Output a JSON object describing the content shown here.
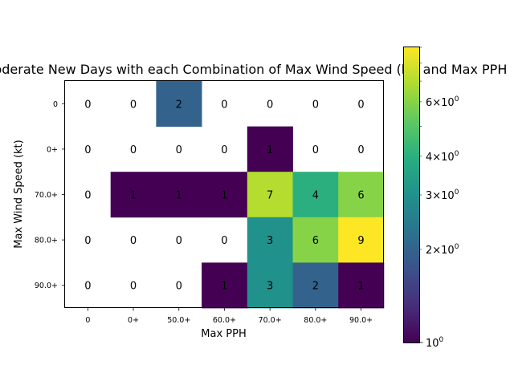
{
  "chart_data": {
    "type": "heatmap",
    "title": "Moderate New Days with each Combination of Max Wind Speed (kt) and Max PPH",
    "xlabel": "Max PPH",
    "ylabel": "Max Wind Speed (kt)",
    "x_categories": [
      "0",
      "0+",
      "50.0+",
      "60.0+",
      "70.0+",
      "80.0+",
      "90.0+"
    ],
    "y_categories": [
      "0",
      "0+",
      "70.0+",
      "80.0+",
      "90.0+"
    ],
    "values": [
      [
        0,
        0,
        2,
        0,
        0,
        0,
        0
      ],
      [
        0,
        0,
        0,
        0,
        1,
        0,
        0
      ],
      [
        0,
        1,
        1,
        1,
        7,
        4,
        6
      ],
      [
        0,
        0,
        0,
        0,
        3,
        6,
        9
      ],
      [
        0,
        0,
        0,
        1,
        3,
        2,
        1
      ]
    ],
    "colorbar": {
      "scale": "log",
      "colormap": "viridis",
      "min": 1,
      "max": 9,
      "major_tick_labels": [
        {
          "value": 1,
          "base": "10",
          "exp": "0"
        }
      ],
      "minor_tick_labels": [
        {
          "value": 2,
          "mant": "2",
          "base": "10",
          "exp": "0"
        },
        {
          "value": 3,
          "mant": "3",
          "base": "10",
          "exp": "0"
        },
        {
          "value": 4,
          "mant": "4",
          "base": "10",
          "exp": "0"
        },
        {
          "value": 6,
          "mant": "6",
          "base": "10",
          "exp": "0"
        }
      ],
      "minor_ticks_unlabeled": [
        5,
        7,
        8,
        9
      ]
    },
    "zero_cells": "blank (masked)",
    "grid": false
  }
}
